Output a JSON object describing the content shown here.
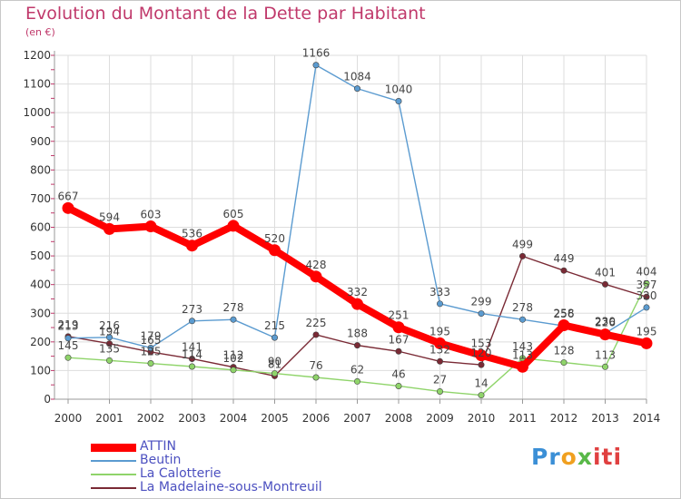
{
  "chart_data": {
    "type": "line",
    "title": "Evolution du Montant de la Dette par Habitant",
    "unit": "(en €)",
    "categories": [
      "2000",
      "2001",
      "2002",
      "2003",
      "2004",
      "2005",
      "2006",
      "2007",
      "2008",
      "2009",
      "2010",
      "2011",
      "2012",
      "2013",
      "2014"
    ],
    "ylim": [
      0,
      1200
    ],
    "yticks": [
      0,
      100,
      200,
      300,
      400,
      500,
      600,
      700,
      800,
      900,
      1000,
      1100,
      1200
    ],
    "grid": true,
    "legend_position": "bottom-left",
    "series": [
      {
        "name": "ATTIN",
        "color": "#ff0000",
        "values": [
          667,
          594,
          603,
          536,
          605,
          520,
          428,
          332,
          251,
          195,
          153,
          113,
          258,
          226,
          195
        ]
      },
      {
        "name": "Beutin",
        "color": "#5b9bd0",
        "values": [
          213,
          216,
          179,
          273,
          278,
          215,
          1166,
          1084,
          1040,
          333,
          299,
          278,
          256,
          230,
          320
        ]
      },
      {
        "name": "La Calotterie",
        "color": "#8fd46a",
        "values": [
          145,
          135,
          125,
          114,
          102,
          90,
          76,
          62,
          46,
          27,
          14,
          143,
          128,
          113,
          404
        ]
      },
      {
        "name": "La Madelaine-sous-Montreuil",
        "color": "#7a2a35",
        "values": [
          219,
          194,
          165,
          141,
          112,
          81,
          225,
          188,
          167,
          132,
          120,
          499,
          449,
          401,
          357
        ]
      }
    ]
  },
  "logo": {
    "text_p": "Pr",
    "text_o": "o",
    "text_x": "x",
    "text_i": "iti"
  }
}
